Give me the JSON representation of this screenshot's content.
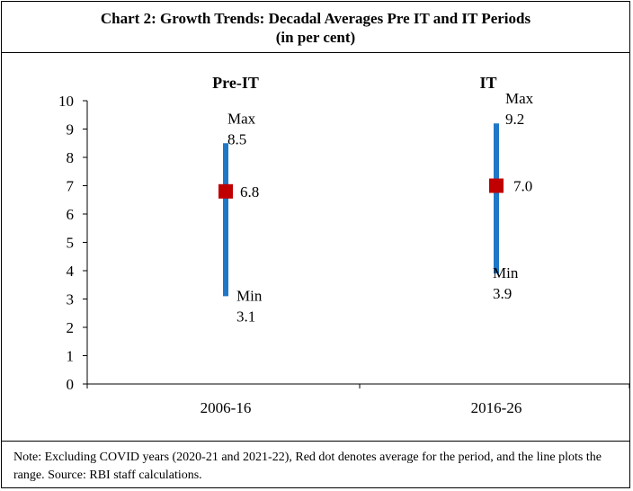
{
  "title": "Chart 2: Growth Trends: Decadal Averages Pre IT and IT Periods",
  "subtitle": "(in per cent)",
  "note": "Note: Excluding COVID years (2020-21 and 2021-22), Red dot denotes average for the period, and the line plots the range. Source: RBI staff calculations.",
  "chart_data": {
    "type": "range",
    "categories": [
      "2006-16",
      "2016-26"
    ],
    "series": [
      {
        "name": "Pre-IT",
        "category": "2006-16",
        "min": 3.1,
        "max": 8.5,
        "average": 6.8,
        "max_label": "Max",
        "min_label": "Min"
      },
      {
        "name": "IT",
        "category": "2016-26",
        "min": 3.9,
        "max": 9.2,
        "average": 7.0,
        "max_label": "Max",
        "min_label": "Min"
      }
    ],
    "ylim": [
      0,
      10
    ],
    "yticks": [
      "0",
      "1",
      "2",
      "3",
      "4",
      "5",
      "6",
      "7",
      "8",
      "9",
      "10"
    ],
    "grid": false,
    "line_color": "#1f77c8",
    "average_color": "#c00000"
  }
}
